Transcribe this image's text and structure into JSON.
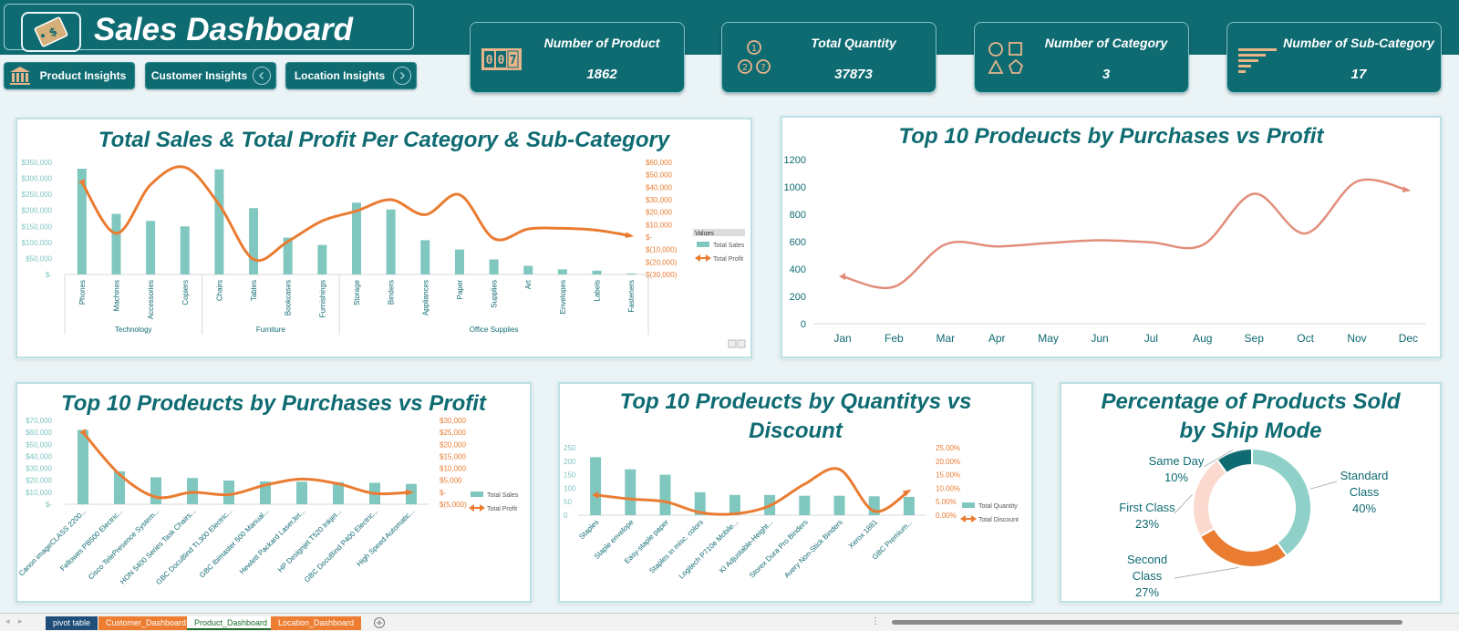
{
  "app": {
    "title": "Sales Dashboard"
  },
  "nav": [
    {
      "label": "Product Insights",
      "icon": "bank-icon"
    },
    {
      "label": "Customer Insights",
      "icon": "chevron-left-icon"
    },
    {
      "label": "Location Insights",
      "icon": "chevron-right-icon"
    }
  ],
  "kpis": [
    {
      "label": "Number of Product",
      "value": "1862",
      "icon": "counter-icon"
    },
    {
      "label": "Total Quantity",
      "value": "37873",
      "icon": "numbers-icon"
    },
    {
      "label": "Number of  Category",
      "value": "3",
      "icon": "shapes-icon"
    },
    {
      "label": "Number of Sub-Category",
      "value": "17",
      "icon": "bars-icon"
    }
  ],
  "colors": {
    "teal": "#0f6b72",
    "bar": "#80c7c0",
    "orange": "#ea7c32",
    "salmon": "#e28d7a",
    "light_pink": "#fbd9cf"
  },
  "charts": {
    "sales_profit": {
      "title": "Total Sales & Total Profit Per Category & Sub-Category",
      "left_ticks": [
        "$350,000",
        "$300,000",
        "$250,000",
        "$200,000",
        "$150,000",
        "$100,000",
        "$50,000",
        "$-"
      ],
      "right_ticks": [
        "$60,000",
        "$50,000",
        "$40,000",
        "$30,000",
        "$20,000",
        "$10,000",
        "$-",
        "$(10,000)",
        "$(20,000)",
        "$(30,000)"
      ],
      "legend_title": "Values",
      "legend": [
        "Total Sales",
        "Total Profit"
      ],
      "groups": [
        "Technology",
        "Furniture",
        "Office Supplies"
      ]
    },
    "monthly": {
      "title": "Top 10 Prodeucts by Purchases vs Profit",
      "y_ticks": [
        "1200",
        "1000",
        "800",
        "600",
        "400",
        "200",
        "0"
      ]
    },
    "top10_purchases": {
      "title": "Top 10 Prodeucts by Purchases vs Profit",
      "left_ticks": [
        "$70,000",
        "$60,000",
        "$50,000",
        "$40,000",
        "$30,000",
        "$20,000",
        "$10,000",
        "$-"
      ],
      "right_ticks": [
        "$30,000",
        "$25,000",
        "$20,000",
        "$15,000",
        "$10,000",
        "$5,000",
        "$-",
        "$(5,000)"
      ],
      "legend": [
        "Total Sales",
        "Total Profit"
      ]
    },
    "top10_quantity": {
      "title_line1": "Top 10 Prodeucts by Quantitys vs",
      "title_line2": "Discount",
      "left_ticks": [
        "250",
        "200",
        "150",
        "100",
        "50",
        "0"
      ],
      "right_ticks": [
        "25.00%",
        "20.00%",
        "15.00%",
        "10.00%",
        "5.00%",
        "0.00%"
      ],
      "legend": [
        "Total Quantity",
        "Total Discount"
      ]
    },
    "ship_mode": {
      "title_line1": "Percentage of Products Sold",
      "title_line2": "by Ship Mode"
    }
  },
  "chart_data": [
    {
      "type": "bar",
      "title": "Total Sales & Total Profit Per Category & Sub-Category",
      "categories": [
        "Phones",
        "Machines",
        "Accessories",
        "Copiers",
        "Chairs",
        "Tables",
        "Bookcases",
        "Furnishings",
        "Storage",
        "Binders",
        "Appliances",
        "Paper",
        "Supplies",
        "Art",
        "Envelopes",
        "Labels",
        "Fasteners"
      ],
      "category_groups": [
        {
          "name": "Technology",
          "count": 4
        },
        {
          "name": "Furniture",
          "count": 4
        },
        {
          "name": "Office Supplies",
          "count": 9
        }
      ],
      "series": [
        {
          "name": "Total Sales",
          "type": "bar",
          "axis": "left",
          "values": [
            330000,
            189000,
            167000,
            150000,
            328000,
            207000,
            115000,
            92000,
            224000,
            203000,
            107000,
            78000,
            47000,
            27000,
            16000,
            12000,
            3000
          ]
        },
        {
          "name": "Total Profit",
          "type": "line",
          "axis": "right",
          "values": [
            44000,
            3000,
            42000,
            56000,
            26000,
            -17800,
            -3500,
            13000,
            21000,
            30000,
            18000,
            34000,
            -1200,
            6500,
            7000,
            5500,
            950
          ]
        }
      ],
      "ylim_left": [
        0,
        350000
      ],
      "ylim_right": [
        -30000,
        60000
      ],
      "legend_title": "Values",
      "legend_position": "right"
    },
    {
      "type": "line",
      "title": "Top 10 Prodeucts by Purchases vs Profit",
      "categories": [
        "Jan",
        "Feb",
        "Mar",
        "Apr",
        "May",
        "Jun",
        "Jul",
        "Aug",
        "Sep",
        "Oct",
        "Nov",
        "Dec"
      ],
      "series": [
        {
          "values": [
            345,
            270,
            580,
            565,
            590,
            610,
            595,
            575,
            950,
            660,
            1040,
            975
          ]
        }
      ],
      "ylim": [
        0,
        1200
      ]
    },
    {
      "type": "bar",
      "title": "Top 10 Prodeucts by Purchases vs Profit",
      "categories": [
        "Canon imageCLASS 2200...",
        "Fellowes PB500 Electric...",
        "Cisco TelePresence System...",
        "HON 5400 Series Task Chairs...",
        "GBC DocuBind TL300 Electric...",
        "GBC Ibimaster 500 Manual...",
        "Hewlett Packard LaserJet...",
        "HP Designjet T520 Inkjet...",
        "GBC DocuBind P400 Electric...",
        "High Speed Automatic..."
      ],
      "series": [
        {
          "name": "Total Sales",
          "type": "bar",
          "axis": "left",
          "values": [
            62000,
            27500,
            22500,
            21900,
            19800,
            19000,
            18800,
            18400,
            17900,
            17000
          ]
        },
        {
          "name": "Total Profit",
          "type": "line",
          "axis": "right",
          "values": [
            25000,
            7500,
            -2000,
            0,
            -1000,
            3000,
            5500,
            3500,
            -500,
            0
          ]
        }
      ],
      "ylim_left": [
        0,
        70000
      ],
      "ylim_right": [
        -5000,
        30000
      ],
      "legend_position": "right"
    },
    {
      "type": "bar",
      "title": "Top 10 Prodeucts by Quantitys vs Discount",
      "categories": [
        "Staples",
        "Staple envelope",
        "Easy-staple paper",
        "Staples in misc. colors",
        "Logitech P710e Mobile...",
        "KI Adjustable-Height...",
        "Storex Dura Pro Binders",
        "Avery Non-Stick Binders",
        "Xerox 1881",
        "GBC Premium..."
      ],
      "series": [
        {
          "name": "Total Quantity",
          "type": "bar",
          "axis": "left",
          "values": [
            215,
            170,
            150,
            85,
            75,
            75,
            72,
            72,
            70,
            68
          ]
        },
        {
          "name": "Total Discount",
          "type": "line",
          "axis": "right",
          "values": [
            7.5,
            6,
            5,
            1,
            0.5,
            3.5,
            11.5,
            17,
            1.5,
            9
          ]
        }
      ],
      "ylim_left": [
        0,
        250
      ],
      "ylim_right": [
        0,
        25
      ],
      "legend_position": "right"
    },
    {
      "type": "pie",
      "title": "Percentage of Products Sold by Ship Mode",
      "categories": [
        "Standard Class",
        "Second Class",
        "First Class",
        "Same Day"
      ],
      "values": [
        40,
        27,
        23,
        10
      ],
      "labels": [
        [
          "Standard",
          "Class",
          "40%"
        ],
        [
          "Second",
          "Class",
          "27%"
        ],
        [
          "First Class",
          "23%"
        ],
        [
          "Same Day",
          "10%"
        ]
      ]
    }
  ],
  "sheet_tabs": [
    {
      "label": "pivot table",
      "color": "#1f4e79"
    },
    {
      "label": "Customer_Dashboard",
      "color": "#ed7d31"
    },
    {
      "label": "Product_Dashboard",
      "color": "#ffffff"
    },
    {
      "label": "Location_Dashboard",
      "color": "#ed7d31"
    }
  ]
}
